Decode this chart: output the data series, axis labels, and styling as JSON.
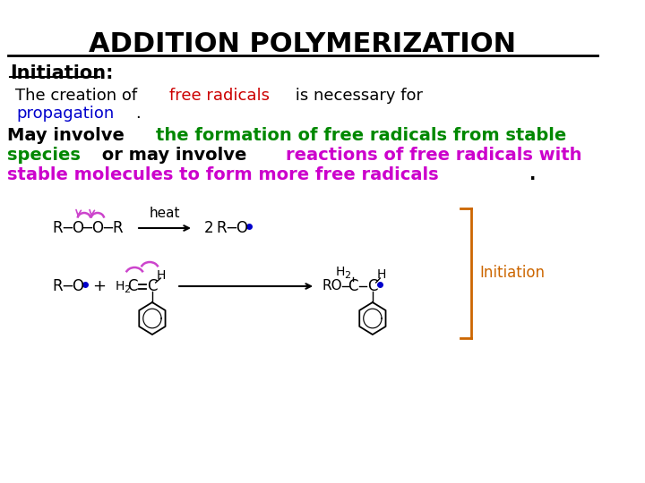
{
  "title": "ADDITION POLYMERIZATION",
  "title_fontsize": 22,
  "title_fontweight": "bold",
  "background_color": "#ffffff",
  "line_color": "#000000",
  "initiation_label": "Initiation",
  "initiation_color": "#000000",
  "para1_parts": [
    {
      "text": "The creation of ",
      "color": "#000000",
      "bold": false
    },
    {
      "text": "free radicals",
      "color": "#cc0000",
      "bold": false
    },
    {
      "text": " is necessary for",
      "color": "#000000",
      "bold": false
    }
  ],
  "para1_line2_parts": [
    {
      "text": "propagation",
      "color": "#0000cc",
      "bold": false
    },
    {
      "text": ".",
      "color": "#000000",
      "bold": false
    }
  ],
  "para2_parts": [
    {
      "text": "May involve ",
      "color": "#000000",
      "bold": true
    },
    {
      "text": "the formation of free radicals from stable",
      "color": "#008800",
      "bold": true
    }
  ],
  "para2_line2_parts": [
    {
      "text": "species",
      "color": "#008800",
      "bold": true
    },
    {
      "text": " or may involve ",
      "color": "#000000",
      "bold": true
    },
    {
      "text": "reactions of free radicals with",
      "color": "#cc00cc",
      "bold": true
    }
  ],
  "para2_line3_parts": [
    {
      "text": "stable molecules to form more free radicals",
      "color": "#cc00cc",
      "bold": true
    },
    {
      "text": ".",
      "color": "#000000",
      "bold": true
    }
  ],
  "bracket_color": "#cc6600",
  "initiation_annot_color": "#cc6600",
  "radical_color": "#0000cc",
  "arrow_color": "#cc44cc",
  "bond_color": "#000000"
}
